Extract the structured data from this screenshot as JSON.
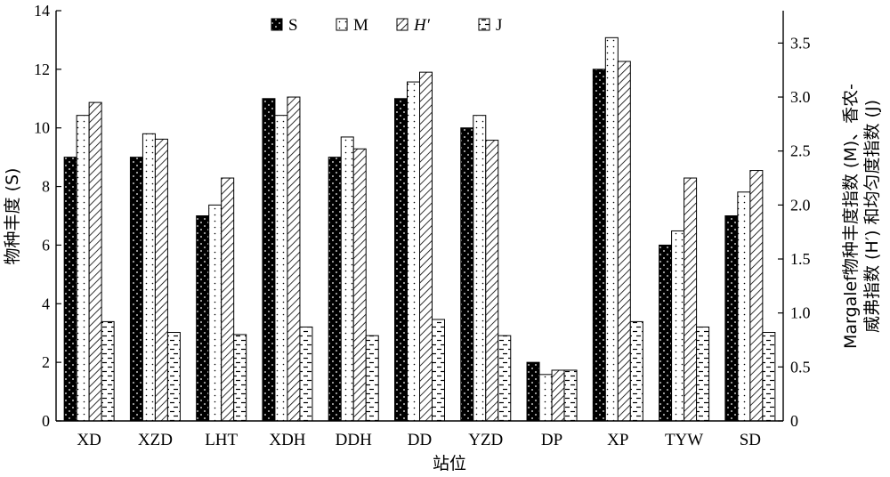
{
  "chart_data": {
    "type": "bar",
    "categories": [
      "XD",
      "XZD",
      "LHT",
      "XDH",
      "DDH",
      "DD",
      "YZD",
      "DP",
      "XP",
      "TYW",
      "SD"
    ],
    "xlabel": "站位",
    "ylabel": "物种丰度 (S)",
    "y2label_line1": "Margalef物种丰度指数 (M)、香农-",
    "y2label_line2": "威弗指数 (H′) 和均匀度指数 (J)",
    "ylim": [
      0,
      14
    ],
    "yticks": [
      "0",
      "2",
      "4",
      "6",
      "8",
      "10",
      "12",
      "14"
    ],
    "y2lim": [
      0,
      3.8
    ],
    "y2ticks": [
      "0",
      "0.5",
      "1.0",
      "1.5",
      "2.0",
      "2.5",
      "3.0",
      "3.5"
    ],
    "legend_position": "top-center",
    "series": [
      {
        "name": "S",
        "axis": "left",
        "pattern": "black-dots",
        "values": [
          9,
          9,
          7,
          11,
          9,
          11,
          10,
          2,
          12,
          6,
          7
        ]
      },
      {
        "name": "M",
        "axis": "right",
        "pattern": "white-dots",
        "values": [
          2.83,
          2.66,
          2.0,
          2.83,
          2.63,
          3.14,
          2.83,
          0.43,
          3.55,
          1.76,
          2.12
        ]
      },
      {
        "name": "H′",
        "axis": "right",
        "pattern": "diagonal-hatch",
        "values": [
          2.95,
          2.61,
          2.25,
          3.0,
          2.52,
          3.23,
          2.6,
          0.47,
          3.33,
          2.25,
          2.32
        ]
      },
      {
        "name": "J",
        "axis": "right",
        "pattern": "horizontal-dashes",
        "values": [
          0.92,
          0.82,
          0.8,
          0.87,
          0.79,
          0.94,
          0.79,
          0.47,
          0.92,
          0.87,
          0.82
        ]
      }
    ]
  }
}
